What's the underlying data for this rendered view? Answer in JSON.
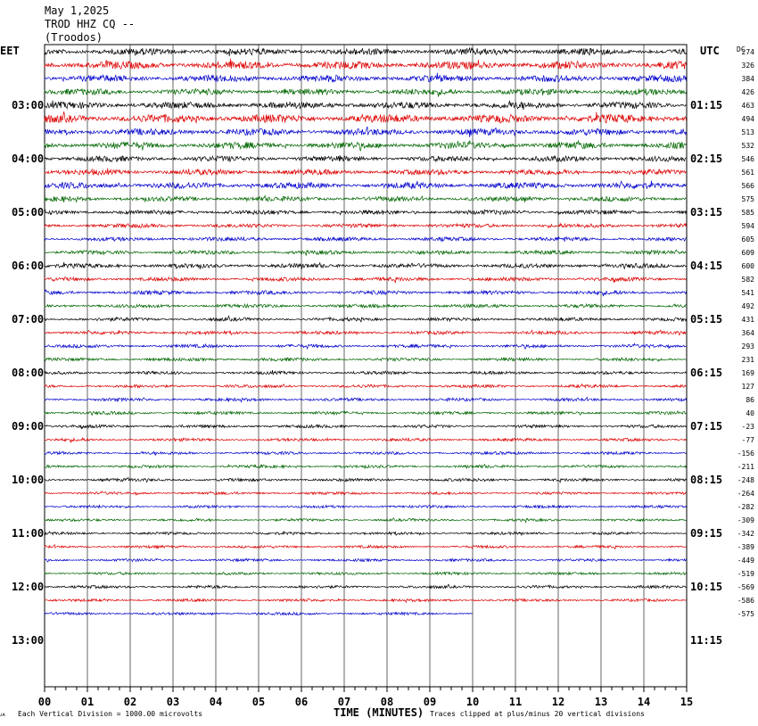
{
  "header": {
    "date": "May 1,2025",
    "station": "TROD HHZ CQ --",
    "location": "(Troodos)"
  },
  "left_tz": "EET",
  "right_tz": "UTC",
  "dc_label": "DC",
  "footer": {
    "scale_note": "Each Vertical Division = 1000.00 microvolts",
    "xlabel": "TIME (MINUTES)",
    "clip_note": "Traces clipped at plus/minus 20 vertical divisions",
    "corner_mark": "ᴊᴀ"
  },
  "colors": {
    "black": "#000000",
    "red": "#dd0000",
    "blue": "#0000cc",
    "green": "#006600",
    "grid": "#000000"
  },
  "chart_data": {
    "type": "line",
    "title": "TROD HHZ CQ --",
    "xlabel": "TIME (MINUTES)",
    "xlim": [
      0,
      15
    ],
    "x_ticks": [
      "00",
      "01",
      "02",
      "03",
      "04",
      "05",
      "06",
      "07",
      "08",
      "09",
      "10",
      "11",
      "12",
      "13",
      "14",
      "15"
    ],
    "left_hour_labels": [
      "03:00",
      "04:00",
      "05:00",
      "06:00",
      "07:00",
      "08:00",
      "09:00",
      "10:00",
      "11:00",
      "12:00",
      "13:00"
    ],
    "right_hour_labels": [
      "01:15",
      "02:15",
      "03:15",
      "04:15",
      "05:15",
      "06:15",
      "07:15",
      "08:15",
      "09:15",
      "10:15",
      "11:15"
    ],
    "trace_colors": [
      "black",
      "red",
      "blue",
      "green"
    ],
    "dc_offsets": [
      274,
      326,
      384,
      426,
      463,
      494,
      513,
      532,
      546,
      561,
      566,
      575,
      585,
      594,
      605,
      609,
      600,
      582,
      541,
      492,
      431,
      364,
      293,
      231,
      169,
      127,
      86,
      40,
      -23,
      -77,
      -156,
      -211,
      -248,
      -264,
      -282,
      -309,
      -342,
      -389,
      -449,
      -519,
      -569,
      -586,
      -575
    ],
    "trace_amplitudes": [
      3.0,
      3.5,
      3.0,
      2.8,
      3.0,
      3.8,
      3.0,
      3.0,
      2.5,
      2.5,
      2.8,
      2.2,
      2.0,
      1.8,
      1.8,
      1.8,
      2.0,
      1.8,
      1.8,
      1.6,
      1.6,
      1.5,
      1.5,
      1.5,
      1.4,
      1.4,
      1.4,
      1.4,
      1.4,
      1.3,
      1.3,
      1.3,
      1.4,
      1.2,
      1.2,
      1.2,
      1.2,
      1.2,
      1.2,
      1.2,
      1.3,
      1.2,
      1.2
    ],
    "last_trace_end_minute": 10.0,
    "units": "microvolts",
    "division_microvolts": 1000.0
  }
}
